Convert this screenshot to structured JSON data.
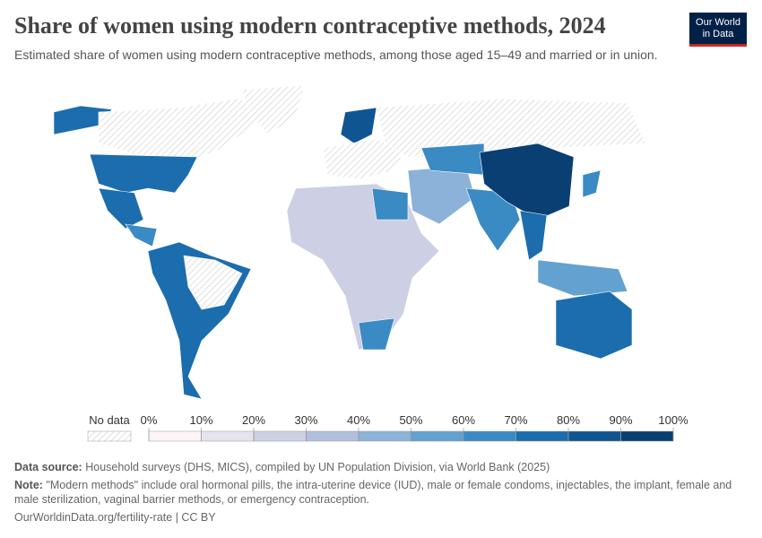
{
  "header": {
    "title": "Share of women using modern contraceptive methods, 2024",
    "subtitle": "Estimated share of women using modern contraceptive methods, among those aged 15–49 and married or in union.",
    "logo": [
      "Our World",
      "in Data"
    ]
  },
  "legend": {
    "no_data_label": "No data",
    "range": [
      0,
      100
    ],
    "ticks": [
      {
        "value": 0,
        "label": "0%"
      },
      {
        "value": 10,
        "label": "10%"
      },
      {
        "value": 20,
        "label": "20%"
      },
      {
        "value": 30,
        "label": "30%"
      },
      {
        "value": 40,
        "label": "40%"
      },
      {
        "value": 50,
        "label": "50%"
      },
      {
        "value": 60,
        "label": "60%"
      },
      {
        "value": 70,
        "label": "70%"
      },
      {
        "value": 80,
        "label": "80%"
      },
      {
        "value": 90,
        "label": "90%"
      },
      {
        "value": 100,
        "label": "100%"
      }
    ],
    "colors": [
      "#fdf4f7",
      "#e6e3f0",
      "#cdcfe4",
      "#b0bfdc",
      "#8db2d9",
      "#62a1d0",
      "#3a8ac4",
      "#1b6dad",
      "#0e5592",
      "#093f72",
      "#062c50"
    ]
  },
  "footer": {
    "source_label": "Data source:",
    "source": "Household surveys (DHS, MICS), compiled by UN Population Division, via World Bank (2025)",
    "note_label": "Note:",
    "note": "\"Modern methods\" include oral hormonal pills, the intra-uterine device (IUD), male or female condoms, injectables, the implant, female and male sterilization, vaginal barrier methods, or emergency contraception.",
    "url": "OurWorldinData.org/fertility-rate | CC BY"
  }
}
